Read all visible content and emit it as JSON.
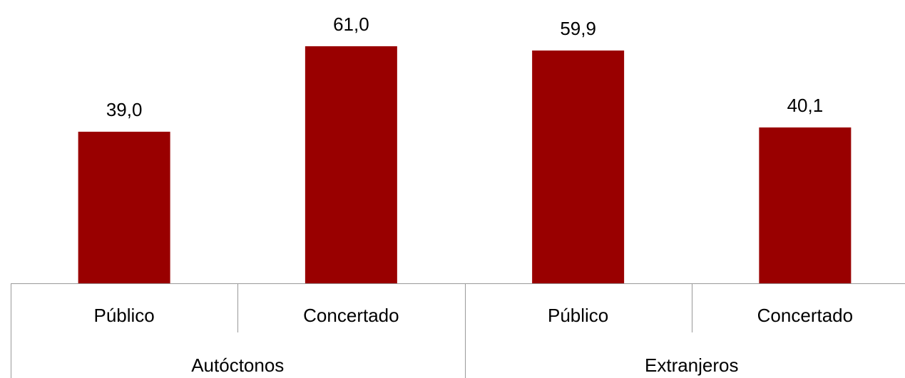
{
  "chart_data": {
    "type": "bar",
    "categories": [
      "Público",
      "Concertado",
      "Público",
      "Concertado"
    ],
    "groups": [
      {
        "label": "Autóctonos",
        "categories": [
          "Público",
          "Concertado"
        ]
      },
      {
        "label": "Extranjeros",
        "categories": [
          "Público",
          "Concertado"
        ]
      }
    ],
    "series": [
      {
        "values": [
          39.0,
          61.0,
          59.9,
          40.1
        ],
        "labels": [
          "39,0",
          "61,0",
          "59,9",
          "40,1"
        ]
      }
    ],
    "ylim": [
      0,
      70
    ],
    "grid": false,
    "legend": "none",
    "title": "",
    "xlabel": "",
    "ylabel": "",
    "colors": {
      "bar": "#990000",
      "axis": "#999999"
    }
  }
}
